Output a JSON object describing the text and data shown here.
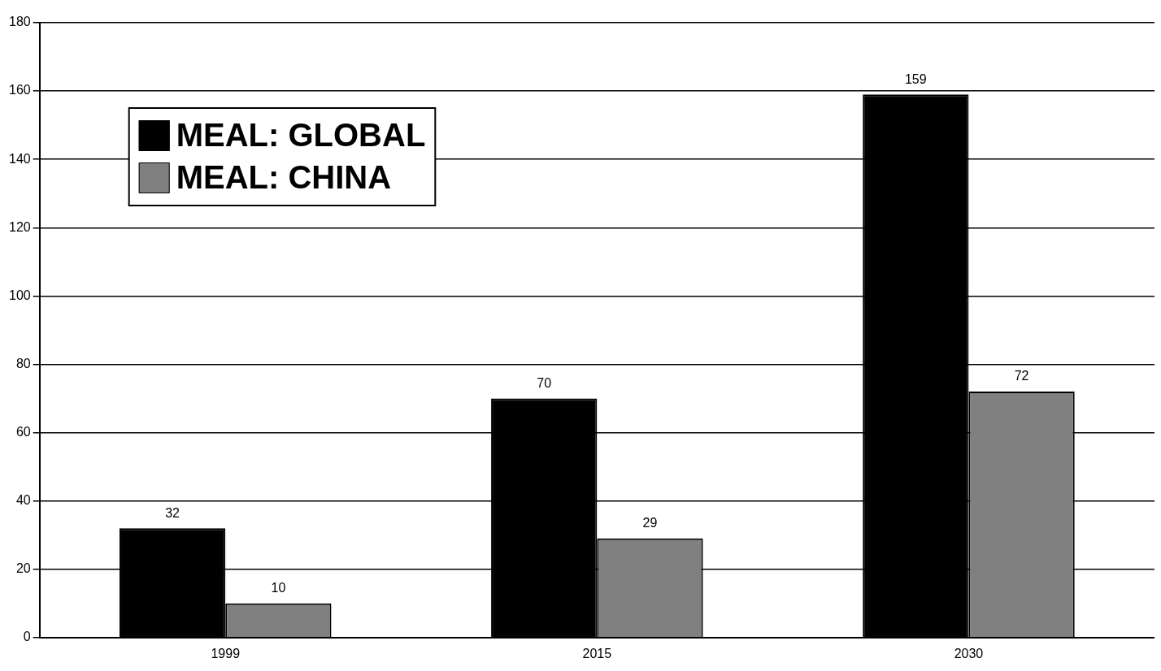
{
  "chart_data": {
    "type": "bar",
    "categories": [
      "1999",
      "2015",
      "2030"
    ],
    "series": [
      {
        "name": "MEAL: GLOBAL",
        "color": "#000000",
        "values": [
          32,
          70,
          159
        ]
      },
      {
        "name": "MEAL: CHINA",
        "color": "#808080",
        "values": [
          10,
          29,
          72
        ]
      }
    ],
    "ylim": [
      0,
      180
    ],
    "yticks": [
      0,
      20,
      40,
      60,
      80,
      100,
      120,
      140,
      160,
      180
    ],
    "grid": "y",
    "legend": "top left",
    "data_labels": true
  }
}
